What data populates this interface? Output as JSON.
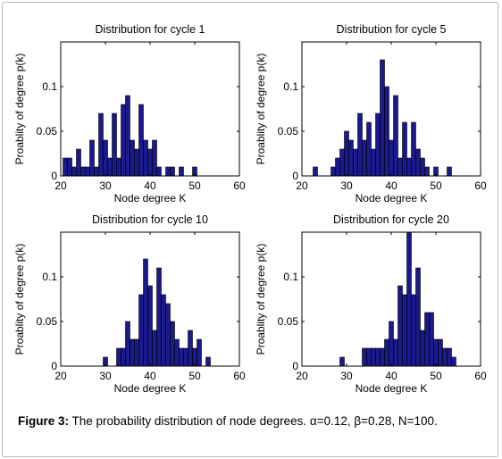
{
  "colors": {
    "bar_fill": "#1a1a8c",
    "bar_stroke": "#000000",
    "axes": "#000000"
  },
  "caption": {
    "figure_label": "Figure 3:",
    "text": " The probability distribution of node degrees. α=0.12, β=0.28, N=100."
  },
  "chart_data": [
    {
      "type": "bar",
      "title": "Distribution for cycle 1",
      "xlabel": "Node degree K",
      "ylabel": "Proablity of degree p(k)",
      "xlim": [
        20,
        60
      ],
      "ylim": [
        0,
        0.15
      ],
      "xticks": [
        "20",
        "30",
        "40",
        "50",
        "60"
      ],
      "yticks": [
        "0",
        "0.05",
        "0.1"
      ],
      "x": [
        21,
        22,
        23,
        24,
        25,
        26,
        27,
        28,
        29,
        30,
        31,
        32,
        33,
        34,
        35,
        36,
        37,
        38,
        39,
        40,
        41,
        42,
        44,
        45,
        47,
        50
      ],
      "values": [
        0.02,
        0.02,
        0.01,
        0.03,
        0.01,
        0.01,
        0.04,
        0.01,
        0.07,
        0.04,
        0.02,
        0.07,
        0.02,
        0.08,
        0.09,
        0.04,
        0.03,
        0.08,
        0.04,
        0.03,
        0.04,
        0.01,
        0.01,
        0.01,
        0.01,
        0.01
      ]
    },
    {
      "type": "bar",
      "title": "Distribution for cycle 5",
      "xlabel": "Node degree K",
      "ylabel": "Proablity of degree p(k)",
      "xlim": [
        20,
        60
      ],
      "ylim": [
        0,
        0.15
      ],
      "xticks": [
        "20",
        "30",
        "40",
        "50",
        "60"
      ],
      "yticks": [
        "0",
        "0.05",
        "0.1"
      ],
      "x": [
        23,
        27,
        28,
        29,
        30,
        31,
        32,
        33,
        34,
        35,
        36,
        37,
        38,
        39,
        40,
        41,
        42,
        43,
        44,
        45,
        46,
        47,
        48,
        50,
        53
      ],
      "values": [
        0.01,
        0.01,
        0.02,
        0.03,
        0.05,
        0.04,
        0.03,
        0.07,
        0.04,
        0.06,
        0.03,
        0.07,
        0.13,
        0.1,
        0.04,
        0.09,
        0.02,
        0.06,
        0.02,
        0.06,
        0.03,
        0.02,
        0.01,
        0.01,
        0.01
      ]
    },
    {
      "type": "bar",
      "title": "Distribution for cycle 10",
      "xlabel": "Node degree K",
      "ylabel": "Proablity of degree p(k)",
      "xlim": [
        20,
        60
      ],
      "ylim": [
        0,
        0.15
      ],
      "xticks": [
        "20",
        "30",
        "40",
        "50",
        "60"
      ],
      "yticks": [
        "0",
        "0.05",
        "0.1"
      ],
      "x": [
        30,
        33,
        34,
        35,
        36,
        37,
        38,
        39,
        40,
        41,
        42,
        43,
        44,
        45,
        46,
        47,
        48,
        49,
        50,
        51,
        53
      ],
      "values": [
        0.01,
        0.02,
        0.02,
        0.05,
        0.03,
        0.03,
        0.08,
        0.12,
        0.09,
        0.04,
        0.11,
        0.08,
        0.07,
        0.05,
        0.03,
        0.02,
        0.02,
        0.04,
        0.02,
        0.03,
        0.01
      ]
    },
    {
      "type": "bar",
      "title": "Distribution for cycle 20",
      "xlabel": "Node degree K",
      "ylabel": "Proablity of degree p(k)",
      "xlim": [
        20,
        60
      ],
      "ylim": [
        0,
        0.15
      ],
      "xticks": [
        "20",
        "30",
        "40",
        "50",
        "60"
      ],
      "yticks": [
        "0",
        "0.05",
        "0.1"
      ],
      "x": [
        29,
        34,
        35,
        36,
        37,
        38,
        39,
        40,
        41,
        42,
        43,
        44,
        45,
        46,
        47,
        48,
        49,
        50,
        51,
        52,
        53,
        54
      ],
      "values": [
        0.01,
        0.02,
        0.02,
        0.02,
        0.02,
        0.02,
        0.03,
        0.05,
        0.03,
        0.09,
        0.08,
        0.15,
        0.08,
        0.11,
        0.04,
        0.06,
        0.06,
        0.03,
        0.03,
        0.02,
        0.02,
        0.01
      ]
    }
  ]
}
